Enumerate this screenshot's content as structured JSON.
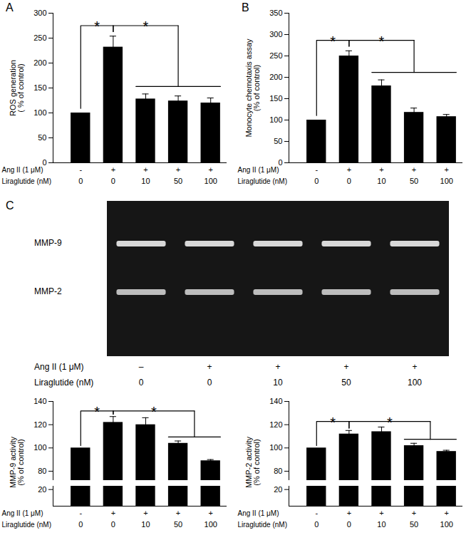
{
  "chart_data": [
    {
      "type": "bar",
      "panel": "A",
      "y_label": "ROS generation\n( % of control)",
      "category_rows": [
        "Ang II (1 μM)",
        "Liraglutide (nM)"
      ],
      "categories": [
        [
          "-",
          "0"
        ],
        [
          "+",
          "0"
        ],
        [
          "+",
          "10"
        ],
        [
          "+",
          "50"
        ],
        [
          "+",
          "100"
        ]
      ],
      "values": [
        100,
        232,
        128,
        124,
        120
      ],
      "errors": [
        0,
        22,
        10,
        10,
        10
      ],
      "color": "#000000",
      "ylim": [
        0,
        300
      ],
      "yticks": [
        0,
        50,
        100,
        150,
        200,
        250,
        300
      ],
      "significance": [
        {
          "label": "*",
          "from": 0,
          "to": [
            1
          ]
        },
        {
          "label": "*",
          "from": 1,
          "to": [
            2,
            3,
            4
          ]
        }
      ]
    },
    {
      "type": "bar",
      "panel": "B",
      "y_label": "Monocyte chemotaxis assay\n(% of control)",
      "category_rows": [
        "Ang II (1 μM)",
        "Liraglutide (nM)"
      ],
      "categories": [
        [
          "-",
          "0"
        ],
        [
          "+",
          "0"
        ],
        [
          "+",
          "10"
        ],
        [
          "+",
          "50"
        ],
        [
          "+",
          "100"
        ]
      ],
      "values": [
        100,
        250,
        180,
        118,
        108
      ],
      "errors": [
        0,
        12,
        14,
        10,
        5
      ],
      "color": "#000000",
      "ylim": [
        0,
        350
      ],
      "yticks": [
        0,
        50,
        100,
        150,
        200,
        250,
        300,
        350
      ],
      "significance": [
        {
          "label": "*",
          "from": 0,
          "to": [
            1
          ]
        },
        {
          "label": "*",
          "from": 1,
          "to": [
            2,
            3,
            4
          ]
        }
      ]
    },
    {
      "type": "bar",
      "y_label": "MMP-9 activity\n(% of control)",
      "category_rows": [
        "Ang II (1 μM)",
        "Liraglutide (nM)"
      ],
      "categories": [
        [
          "-",
          "0"
        ],
        [
          "+",
          "0"
        ],
        [
          "+",
          "10"
        ],
        [
          "+",
          "50"
        ],
        [
          "+",
          "100"
        ]
      ],
      "values": [
        100,
        122,
        120,
        104,
        89
      ],
      "errors": [
        0,
        5,
        6,
        2,
        1
      ],
      "color": "#000000",
      "ylim": [
        0,
        140
      ],
      "y_break": [
        24,
        72
      ],
      "yticks": [
        20,
        80,
        100,
        120,
        140
      ],
      "significance": [
        {
          "label": "*",
          "from": 0,
          "to": [
            1
          ]
        },
        {
          "label": "*",
          "from": 1,
          "to": [
            3,
            4
          ]
        }
      ]
    },
    {
      "type": "bar",
      "y_label": "MMP-2 activity\n(% of control)",
      "category_rows": [
        "Ang II (1 μM)",
        "Liraglutide (nM)"
      ],
      "categories": [
        [
          "-",
          "0"
        ],
        [
          "+",
          "0"
        ],
        [
          "+",
          "10"
        ],
        [
          "+",
          "50"
        ],
        [
          "+",
          "100"
        ]
      ],
      "values": [
        100,
        112,
        114,
        102,
        97
      ],
      "errors": [
        0,
        3,
        4,
        2,
        1
      ],
      "color": "#000000",
      "ylim": [
        0,
        140
      ],
      "y_break": [
        24,
        72
      ],
      "yticks": [
        20,
        80,
        100,
        120,
        140
      ],
      "significance": [
        {
          "label": "*",
          "from": 0,
          "to": [
            1
          ]
        },
        {
          "label": "*",
          "from": 1,
          "to": [
            3,
            4
          ]
        }
      ]
    }
  ],
  "gel": {
    "panel": "C",
    "bands": [
      "MMP-9",
      "MMP-2"
    ],
    "lane_rows": [
      "Ang II (1 μM)",
      "Liraglutide (nM)"
    ],
    "lanes": [
      [
        "–",
        "0"
      ],
      [
        "+",
        "0"
      ],
      [
        "+",
        "10"
      ],
      [
        "+",
        "50"
      ],
      [
        "+",
        "100"
      ]
    ]
  }
}
